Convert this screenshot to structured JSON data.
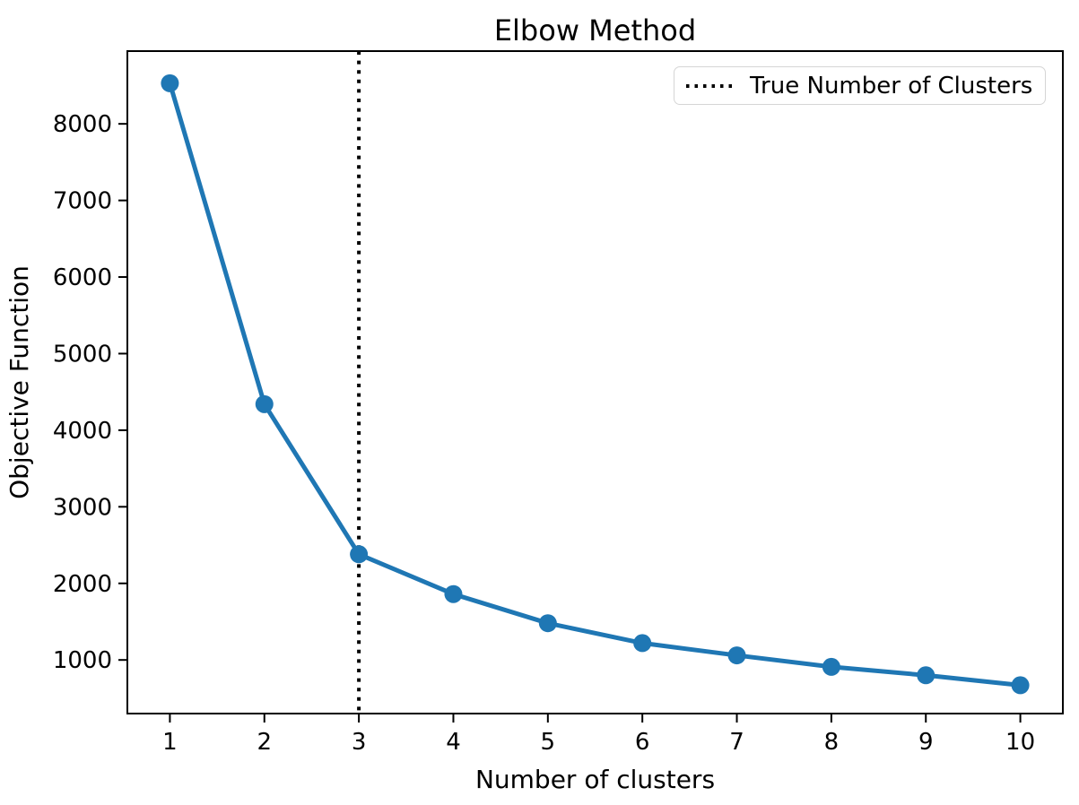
{
  "figure": {
    "background": "#ffffff"
  },
  "chart_data": {
    "type": "line",
    "title": "Elbow Method",
    "xlabel": "Number of clusters",
    "ylabel": "Objective Function",
    "x": [
      1,
      2,
      3,
      4,
      5,
      6,
      7,
      8,
      9,
      10
    ],
    "series": [
      {
        "color": "#1f77b4",
        "marker": "circle",
        "values": [
          8530,
          4340,
          2380,
          1860,
          1480,
          1220,
          1060,
          910,
          800,
          670
        ]
      }
    ],
    "xticks": [
      1,
      2,
      3,
      4,
      5,
      6,
      7,
      8,
      9,
      10
    ],
    "yticks": [
      1000,
      2000,
      3000,
      4000,
      5000,
      6000,
      7000,
      8000
    ],
    "xlim": [
      0.55,
      10.45
    ],
    "ylim": [
      300,
      8950
    ],
    "grid": false,
    "vline": {
      "x": 3,
      "style": "dotted",
      "color": "#000000"
    },
    "legend": {
      "position": "upper right",
      "entries": [
        {
          "label": "True Number of Clusters",
          "line_style": "dotted",
          "color": "#000000"
        }
      ]
    }
  }
}
